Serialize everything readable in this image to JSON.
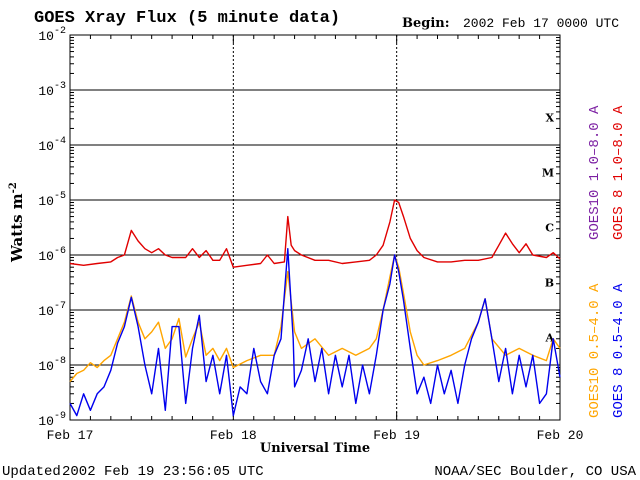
{
  "chart_data": {
    "type": "line",
    "title": "GOES Xray Flux (5 minute data)",
    "begin_label": "Begin:",
    "begin_value": "2002 Feb 17 0000 UTC",
    "xlabel": "Universal Time",
    "ylabel": "Watts m",
    "ylabel_sup": "-2",
    "y_scale": "log",
    "ylim": [
      1e-09,
      0.01
    ],
    "xlim_hours": [
      0,
      72
    ],
    "x_ticks": [
      {
        "label": "Feb 17",
        "hour": 0
      },
      {
        "label": "Feb 18",
        "hour": 24
      },
      {
        "label": "Feb 19",
        "hour": 48
      },
      {
        "label": "Feb 20",
        "hour": 72
      }
    ],
    "y_ticks": [
      {
        "base": "10",
        "exp": "-2",
        "value": 0.01
      },
      {
        "base": "10",
        "exp": "-3",
        "value": 0.001
      },
      {
        "base": "10",
        "exp": "-4",
        "value": 0.0001
      },
      {
        "base": "10",
        "exp": "-5",
        "value": 1e-05
      },
      {
        "base": "10",
        "exp": "-6",
        "value": 1e-06
      },
      {
        "base": "10",
        "exp": "-7",
        "value": 1e-07
      },
      {
        "base": "10",
        "exp": "-8",
        "value": 1e-08
      },
      {
        "base": "10",
        "exp": "-9",
        "value": 1e-09
      }
    ],
    "flare_classes": [
      {
        "label": "X",
        "value": 0.000316
      },
      {
        "label": "M",
        "value": 3.16e-05
      },
      {
        "label": "C",
        "value": 3.16e-06
      },
      {
        "label": "B",
        "value": 3.16e-07
      },
      {
        "label": "A",
        "value": 3.16e-08
      }
    ],
    "series": [
      {
        "name": "GOES10 1.0–8.0 A",
        "color": "#7b1fa2",
        "points": [],
        "note_rendered": "overlaid beneath GOES 8 long channel"
      },
      {
        "name": "GOES 8 1.0–8.0 A",
        "color": "#e00000",
        "points": [
          [
            0,
            7e-07
          ],
          [
            2,
            6.5e-07
          ],
          [
            4,
            7e-07
          ],
          [
            6,
            7.5e-07
          ],
          [
            7,
            9e-07
          ],
          [
            8,
            1e-06
          ],
          [
            9,
            2.8e-06
          ],
          [
            10,
            1.8e-06
          ],
          [
            11,
            1.3e-06
          ],
          [
            12,
            1.1e-06
          ],
          [
            13,
            1.3e-06
          ],
          [
            14,
            1e-06
          ],
          [
            15,
            9e-07
          ],
          [
            17,
            9e-07
          ],
          [
            18,
            1.3e-06
          ],
          [
            19,
            9e-07
          ],
          [
            20,
            1.2e-06
          ],
          [
            21,
            8e-07
          ],
          [
            22,
            8e-07
          ],
          [
            23,
            1.3e-06
          ],
          [
            24,
            6e-07
          ],
          [
            26,
            6.5e-07
          ],
          [
            28,
            7e-07
          ],
          [
            29,
            1e-06
          ],
          [
            30,
            7e-07
          ],
          [
            31.5,
            7.5e-07
          ],
          [
            32,
            5e-06
          ],
          [
            32.5,
            1.5e-06
          ],
          [
            33,
            1.2e-06
          ],
          [
            34,
            1e-06
          ],
          [
            36,
            8e-07
          ],
          [
            38,
            8e-07
          ],
          [
            40,
            7e-07
          ],
          [
            42,
            7.5e-07
          ],
          [
            44,
            8e-07
          ],
          [
            45,
            1e-06
          ],
          [
            46,
            1.5e-06
          ],
          [
            47,
            4e-06
          ],
          [
            47.7,
            1e-05
          ],
          [
            48.3,
            9e-06
          ],
          [
            49,
            5e-06
          ],
          [
            50,
            2e-06
          ],
          [
            51,
            1.2e-06
          ],
          [
            52,
            9e-07
          ],
          [
            54,
            7.5e-07
          ],
          [
            56,
            7.5e-07
          ],
          [
            58,
            8e-07
          ],
          [
            60,
            8e-07
          ],
          [
            62,
            9e-07
          ],
          [
            63,
            1.5e-06
          ],
          [
            64,
            2.5e-06
          ],
          [
            65,
            1.6e-06
          ],
          [
            66,
            1.1e-06
          ],
          [
            67,
            1.6e-06
          ],
          [
            68,
            1e-06
          ],
          [
            70,
            9e-07
          ],
          [
            71,
            1.1e-06
          ],
          [
            72,
            8.5e-07
          ]
        ]
      },
      {
        "name": "GOES10 0.5–4.0 A",
        "color": "#ffa500",
        "points": [
          [
            0,
            5e-09
          ],
          [
            1,
            7e-09
          ],
          [
            2,
            8e-09
          ],
          [
            3,
            1.1e-08
          ],
          [
            4,
            9e-09
          ],
          [
            5,
            1.2e-08
          ],
          [
            6,
            1.5e-08
          ],
          [
            7,
            3e-08
          ],
          [
            8,
            6e-08
          ],
          [
            9,
            1.8e-07
          ],
          [
            10,
            6e-08
          ],
          [
            11,
            3e-08
          ],
          [
            12,
            4e-08
          ],
          [
            13,
            6e-08
          ],
          [
            14,
            2e-08
          ],
          [
            15,
            3e-08
          ],
          [
            16,
            7e-08
          ],
          [
            17,
            1.4e-08
          ],
          [
            18,
            3e-08
          ],
          [
            19,
            6e-08
          ],
          [
            20,
            1.5e-08
          ],
          [
            21,
            2e-08
          ],
          [
            22,
            1.2e-08
          ],
          [
            23,
            2e-08
          ],
          [
            24,
            9e-09
          ],
          [
            26,
            1.2e-08
          ],
          [
            28,
            1.5e-08
          ],
          [
            30,
            1.5e-08
          ],
          [
            31,
            5e-08
          ],
          [
            32,
            5e-07
          ],
          [
            33,
            4e-08
          ],
          [
            34,
            2e-08
          ],
          [
            36,
            3e-08
          ],
          [
            38,
            1.5e-08
          ],
          [
            40,
            2e-08
          ],
          [
            42,
            1.5e-08
          ],
          [
            44,
            2e-08
          ],
          [
            45,
            3e-08
          ],
          [
            46,
            1e-07
          ],
          [
            47,
            4e-07
          ],
          [
            47.7,
            1e-06
          ],
          [
            48.3,
            6e-07
          ],
          [
            49,
            2e-07
          ],
          [
            50,
            4e-08
          ],
          [
            51,
            1.5e-08
          ],
          [
            52,
            1e-08
          ],
          [
            54,
            1.2e-08
          ],
          [
            56,
            1.5e-08
          ],
          [
            58,
            2e-08
          ],
          [
            60,
            6e-08
          ],
          [
            61,
            1.6e-07
          ],
          [
            62,
            3e-08
          ],
          [
            64,
            1.5e-08
          ],
          [
            66,
            2e-08
          ],
          [
            68,
            1.5e-08
          ],
          [
            70,
            1.2e-08
          ],
          [
            71,
            3e-08
          ],
          [
            72,
            2e-08
          ]
        ]
      },
      {
        "name": "GOES 8 0.5–4.0 A",
        "color": "#0000ee",
        "points": [
          [
            0,
            2e-09
          ],
          [
            1,
            1.2e-09
          ],
          [
            2,
            3e-09
          ],
          [
            3,
            1.5e-09
          ],
          [
            4,
            3e-09
          ],
          [
            5,
            4e-09
          ],
          [
            6,
            8e-09
          ],
          [
            7,
            2.5e-08
          ],
          [
            8,
            5e-08
          ],
          [
            9,
            1.7e-07
          ],
          [
            10,
            5e-08
          ],
          [
            11,
            1e-08
          ],
          [
            12,
            3e-09
          ],
          [
            13,
            2e-08
          ],
          [
            14,
            1.5e-09
          ],
          [
            15,
            5e-08
          ],
          [
            16,
            5e-08
          ],
          [
            17,
            2e-09
          ],
          [
            18,
            2e-08
          ],
          [
            19,
            8e-08
          ],
          [
            20,
            5e-09
          ],
          [
            21,
            1.5e-08
          ],
          [
            22,
            3e-09
          ],
          [
            23,
            1.5e-08
          ],
          [
            24,
            1.2e-09
          ],
          [
            25,
            4e-09
          ],
          [
            26,
            3e-09
          ],
          [
            27,
            2e-08
          ],
          [
            28,
            5e-09
          ],
          [
            29,
            3e-09
          ],
          [
            30,
            1.5e-08
          ],
          [
            31,
            3e-08
          ],
          [
            32,
            1.3e-06
          ],
          [
            32.8,
            3e-08
          ],
          [
            33,
            4e-09
          ],
          [
            34,
            8e-09
          ],
          [
            35,
            3e-08
          ],
          [
            36,
            5e-09
          ],
          [
            37,
            2e-08
          ],
          [
            38,
            3e-09
          ],
          [
            39,
            1.5e-08
          ],
          [
            40,
            4e-09
          ],
          [
            41,
            1.5e-08
          ],
          [
            42,
            2e-09
          ],
          [
            43,
            1e-08
          ],
          [
            44,
            3e-09
          ],
          [
            45,
            1.5e-08
          ],
          [
            46,
            1e-07
          ],
          [
            47,
            3e-07
          ],
          [
            47.7,
            1e-06
          ],
          [
            48.3,
            5e-07
          ],
          [
            49,
            1.5e-07
          ],
          [
            50,
            2e-08
          ],
          [
            51,
            3e-09
          ],
          [
            52,
            6e-09
          ],
          [
            53,
            2e-09
          ],
          [
            54,
            1e-08
          ],
          [
            55,
            3e-09
          ],
          [
            56,
            8e-09
          ],
          [
            57,
            2e-09
          ],
          [
            58,
            1e-08
          ],
          [
            59,
            3e-08
          ],
          [
            60,
            6e-08
          ],
          [
            61,
            1.6e-07
          ],
          [
            62,
            3e-08
          ],
          [
            63,
            5e-09
          ],
          [
            64,
            2e-08
          ],
          [
            65,
            3e-09
          ],
          [
            66,
            1.5e-08
          ],
          [
            67,
            4e-09
          ],
          [
            68,
            1.5e-08
          ],
          [
            69,
            2e-09
          ],
          [
            70,
            3e-09
          ],
          [
            71,
            3e-08
          ],
          [
            72,
            6e-09
          ]
        ]
      }
    ]
  },
  "footer": {
    "updated_label": "Updated",
    "updated_value": "2002 Feb 19 23:56:05 UTC",
    "source": "NOAA/SEC Boulder, CO USA"
  }
}
